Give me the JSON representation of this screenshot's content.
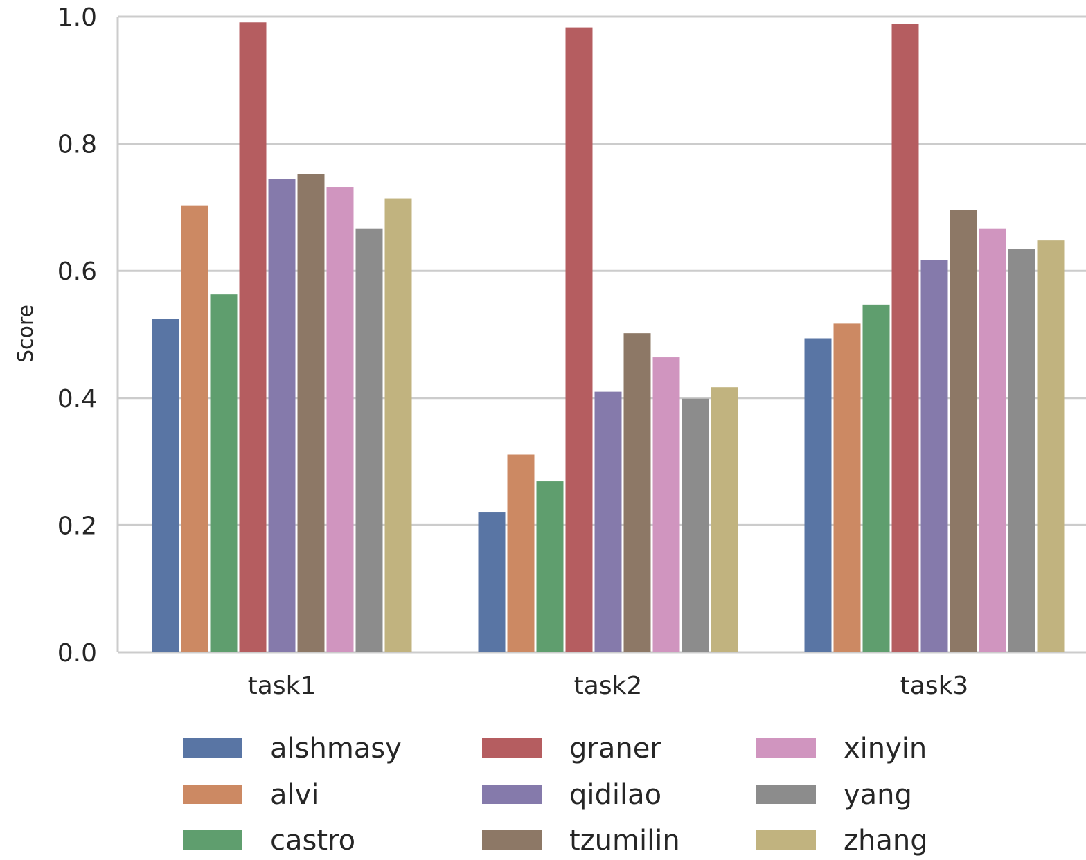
{
  "chart_data": {
    "type": "bar",
    "title": "",
    "xlabel": "",
    "ylabel": "Score",
    "ylim": [
      0,
      1.0
    ],
    "yticks": [
      "0.0",
      "0.2",
      "0.4",
      "0.6",
      "0.8",
      "1.0"
    ],
    "grid": true,
    "legend_position": "bottom",
    "categories": [
      "task1",
      "task2",
      "task3"
    ],
    "series": [
      {
        "name": "alshmasy",
        "color": "#5975a4",
        "values": [
          0.525,
          0.22,
          0.494
        ]
      },
      {
        "name": "alvi",
        "color": "#cc8963",
        "values": [
          0.703,
          0.311,
          0.517
        ]
      },
      {
        "name": "castro",
        "color": "#5f9e6e",
        "values": [
          0.563,
          0.269,
          0.547
        ]
      },
      {
        "name": "graner",
        "color": "#b55d60",
        "values": [
          0.991,
          0.983,
          0.989
        ]
      },
      {
        "name": "qidilao",
        "color": "#857aab",
        "values": [
          0.745,
          0.41,
          0.617
        ]
      },
      {
        "name": "tzumilin",
        "color": "#8d7866",
        "values": [
          0.752,
          0.502,
          0.696
        ]
      },
      {
        "name": "xinyin",
        "color": "#d095bf",
        "values": [
          0.732,
          0.464,
          0.667
        ]
      },
      {
        "name": "yang",
        "color": "#8c8c8c",
        "values": [
          0.667,
          0.399,
          0.635
        ]
      },
      {
        "name": "zhang",
        "color": "#c1b37f",
        "values": [
          0.714,
          0.417,
          0.648
        ]
      }
    ]
  }
}
